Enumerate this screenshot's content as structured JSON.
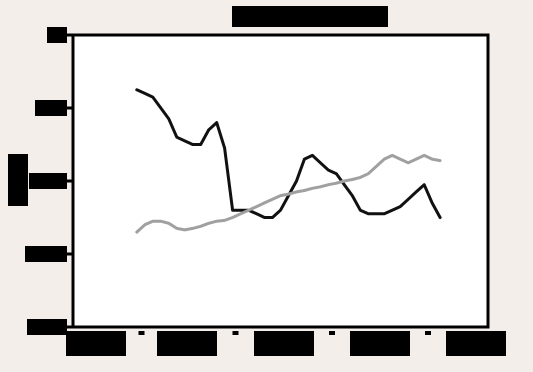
{
  "chart_data": {
    "type": "line",
    "title": "",
    "xlabel": "",
    "ylabel": "",
    "x": [
      1,
      2,
      3,
      4,
      5,
      6,
      7,
      8,
      9,
      10,
      11,
      12,
      13,
      14,
      15,
      16,
      17,
      18,
      19,
      20,
      21,
      22,
      23,
      24,
      25,
      26,
      27,
      28,
      29,
      30,
      31,
      32,
      33,
      34,
      35,
      36,
      37,
      38,
      39,
      40,
      41,
      42
    ],
    "xlim": [
      -7,
      45
    ],
    "ylim": [
      0,
      4
    ],
    "yticks": [
      0,
      1,
      2,
      3,
      4
    ],
    "grid": false,
    "legend": "none",
    "title_style": "redacted",
    "tick_label_style": "redacted",
    "axis_color": "#000000",
    "background": "#f3eeea",
    "plot_background": "#ffffff",
    "series": [
      {
        "color": "#111111",
        "values": [
          3.25,
          3.2,
          3.15,
          3.0,
          2.85,
          2.6,
          2.55,
          2.5,
          2.5,
          2.7,
          2.8,
          2.45,
          1.6,
          1.6,
          1.6,
          1.55,
          1.5,
          1.5,
          1.6,
          1.8,
          2.0,
          2.3,
          2.35,
          2.25,
          2.15,
          2.1,
          1.95,
          1.8,
          1.6,
          1.55,
          1.55,
          1.55,
          1.6,
          1.65,
          1.75,
          1.85,
          1.95,
          1.7,
          1.5,
          null,
          null,
          null
        ]
      },
      {
        "color": "#a0a0a0",
        "values": [
          1.3,
          1.4,
          1.45,
          1.45,
          1.42,
          1.35,
          1.33,
          1.35,
          1.38,
          1.42,
          1.45,
          1.46,
          1.5,
          1.55,
          1.6,
          1.65,
          1.7,
          1.75,
          1.8,
          1.82,
          1.85,
          1.87,
          1.9,
          1.92,
          1.95,
          1.97,
          2.0,
          2.02,
          2.05,
          2.1,
          2.2,
          2.3,
          2.35,
          2.3,
          2.25,
          2.3,
          2.35,
          2.3,
          2.28,
          null,
          null,
          null
        ]
      }
    ]
  }
}
